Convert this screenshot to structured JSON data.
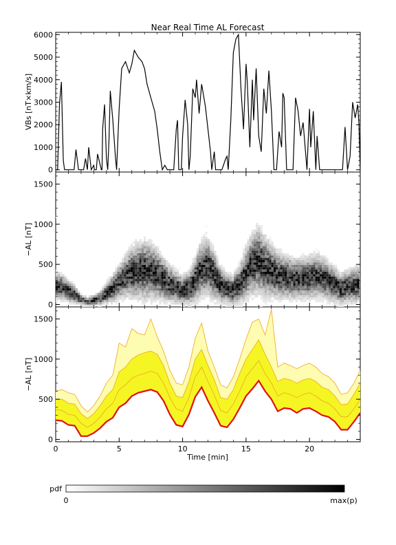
{
  "title": "Near Real Time AL Forecast",
  "colors": {
    "frame": "#000000",
    "yellow_fill": "#f5f524",
    "pale_fill": "#fdfcb0",
    "orange_line": "#f0a31c",
    "red_line": "#e01010",
    "vbs_line": "#000000"
  },
  "chart_data": [
    {
      "type": "line",
      "panel": "top",
      "ylabel": "VBs [nT×km/s]",
      "xlim": [
        0,
        24
      ],
      "ylim": [
        -100,
        6100
      ],
      "yticks": [
        0,
        1000,
        2000,
        3000,
        4000,
        5000,
        6000
      ],
      "yticklabels": [
        "0",
        "1000",
        "2000",
        "3000",
        "4000",
        "5000",
        "6000"
      ],
      "series": [
        {
          "x": [
            0,
            0.15,
            0.3,
            0.45,
            0.55,
            0.6,
            0.7,
            1.0,
            1.3,
            1.4,
            1.45,
            1.6,
            1.8,
            1.9,
            2.0,
            2.1,
            2.2,
            2.35,
            2.5,
            2.6,
            2.8,
            3.0,
            3.05,
            3.2,
            3.3,
            3.6,
            3.65,
            3.7,
            3.85,
            4.0,
            4.1,
            4.2,
            4.3,
            4.5,
            4.7,
            4.8,
            5.0,
            5.2,
            5.5,
            5.8,
            6.0,
            6.2,
            6.5,
            6.8,
            7.0,
            7.2,
            7.5,
            7.8,
            8.0,
            8.2,
            8.4,
            8.6,
            8.8,
            8.9,
            9.0,
            9.1,
            9.3,
            9.5,
            9.6,
            9.7,
            9.9,
            10.0,
            10.2,
            10.4,
            10.5,
            10.6,
            10.8,
            11.0,
            11.1,
            11.3,
            11.5,
            11.8,
            12.0,
            12.2,
            12.3,
            12.5,
            12.6,
            12.8,
            12.9,
            13.0,
            13.1,
            13.4,
            13.5,
            13.6,
            13.8,
            14.0,
            14.2,
            14.4,
            14.6,
            14.8,
            15.0,
            15.1,
            15.3,
            15.5,
            15.6,
            15.8,
            16.0,
            16.2,
            16.4,
            16.6,
            16.8,
            17.0,
            17.2,
            17.4,
            17.6,
            17.8,
            17.9,
            18.0,
            18.2,
            18.5,
            18.7,
            18.9,
            19.1,
            19.3,
            19.5,
            19.8,
            20.0,
            20.1,
            20.3,
            20.5,
            20.6,
            20.8,
            21.0,
            21.3,
            21.5,
            21.7,
            21.9,
            22.1,
            22.3,
            22.6,
            22.8,
            23.0,
            23.2,
            23.4,
            23.6,
            23.8,
            23.9,
            24.0
          ],
          "y": [
            0,
            0,
            2900,
            3900,
            1500,
            400,
            0,
            0,
            0,
            0,
            0,
            900,
            0,
            0,
            0,
            0,
            0,
            500,
            0,
            1000,
            0,
            200,
            0,
            0,
            700,
            0,
            0,
            1800,
            2900,
            500,
            0,
            1300,
            3500,
            2200,
            600,
            0,
            2700,
            4500,
            4800,
            4300,
            4700,
            5300,
            5000,
            4800,
            4500,
            3800,
            3200,
            2600,
            1800,
            800,
            0,
            200,
            0,
            0,
            0,
            0,
            0,
            1800,
            2200,
            0,
            0,
            1500,
            3100,
            2000,
            0,
            600,
            3600,
            3200,
            4000,
            2500,
            3800,
            2800,
            1800,
            800,
            0,
            800,
            0,
            0,
            0,
            0,
            0,
            500,
            600,
            0,
            2200,
            5200,
            5800,
            6000,
            3600,
            1800,
            4700,
            3900,
            1000,
            4000,
            2200,
            4500,
            1500,
            800,
            3600,
            2500,
            4400,
            2600,
            0,
            0,
            1700,
            1000,
            3400,
            3200,
            0,
            0,
            0,
            3200,
            2600,
            1500,
            2100,
            0,
            2700,
            1000,
            2600,
            0,
            1500,
            0,
            0,
            0,
            0,
            0,
            0,
            0,
            0,
            0,
            1900,
            0,
            600,
            3000,
            2300,
            2900,
            2000,
            0
          ]
        }
      ]
    },
    {
      "type": "heatmap",
      "panel": "middle",
      "ylabel": "−AL [nT]",
      "xlim": [
        0,
        24
      ],
      "ylim": [
        -30,
        1650
      ],
      "yticks": [
        0,
        500,
        1000,
        1500
      ],
      "yticklabels": [
        "0",
        "500",
        "1000",
        "1500"
      ],
      "grid": false,
      "x": [
        0,
        0.5,
        1,
        1.5,
        2,
        2.5,
        3,
        3.5,
        4,
        4.5,
        5,
        5.5,
        6,
        6.5,
        7,
        7.5,
        8,
        8.5,
        9,
        9.5,
        10,
        10.5,
        11,
        11.5,
        12,
        12.5,
        13,
        13.5,
        14,
        14.5,
        15,
        15.5,
        16,
        16.5,
        17,
        17.5,
        18,
        18.5,
        19,
        19.5,
        20,
        20.5,
        21,
        21.5,
        22,
        22.5,
        23,
        23.5,
        24
      ],
      "center": [
        240,
        220,
        170,
        130,
        60,
        40,
        50,
        80,
        140,
        200,
        280,
        350,
        400,
        420,
        430,
        420,
        380,
        320,
        260,
        220,
        180,
        200,
        300,
        450,
        480,
        380,
        250,
        200,
        180,
        250,
        380,
        500,
        560,
        480,
        420,
        380,
        350,
        340,
        320,
        330,
        340,
        360,
        350,
        300,
        260,
        200,
        220,
        240,
        260
      ],
      "spread": [
        160,
        150,
        130,
        110,
        60,
        50,
        60,
        80,
        120,
        160,
        200,
        240,
        300,
        330,
        350,
        330,
        300,
        260,
        220,
        190,
        170,
        190,
        260,
        330,
        340,
        300,
        220,
        180,
        170,
        220,
        300,
        360,
        400,
        360,
        320,
        280,
        260,
        250,
        240,
        240,
        250,
        260,
        250,
        230,
        210,
        180,
        190,
        200,
        210
      ]
    },
    {
      "type": "area",
      "panel": "bottom",
      "ylabel": "−AL [nT]",
      "xlabel": "Time [min]",
      "xlim": [
        0,
        24
      ],
      "ylim": [
        -30,
        1650
      ],
      "xticks": [
        0,
        5,
        10,
        15,
        20
      ],
      "xticklabels": [
        "0",
        "5",
        "10",
        "15",
        "20"
      ],
      "yticks": [
        0,
        500,
        1000,
        1500
      ],
      "yticklabels": [
        "0",
        "500",
        "1000",
        "1500"
      ],
      "x": [
        0,
        0.5,
        1,
        1.5,
        2,
        2.5,
        3,
        3.5,
        4,
        4.5,
        5,
        5.5,
        6,
        6.5,
        7,
        7.5,
        8,
        8.5,
        9,
        9.5,
        10,
        10.5,
        11,
        11.5,
        12,
        12.5,
        13,
        13.5,
        14,
        14.5,
        15,
        15.5,
        16,
        16.5,
        17,
        17.5,
        18,
        18.5,
        19,
        19.5,
        20,
        20.5,
        21,
        21.5,
        22,
        22.5,
        23,
        23.5,
        24
      ],
      "series": [
        {
          "name": "median",
          "values": [
            240,
            230,
            180,
            170,
            40,
            40,
            80,
            140,
            220,
            270,
            400,
            450,
            540,
            580,
            600,
            620,
            590,
            480,
            310,
            180,
            160,
            310,
            530,
            650,
            480,
            330,
            170,
            150,
            250,
            390,
            540,
            630,
            730,
            600,
            500,
            350,
            390,
            380,
            330,
            380,
            390,
            350,
            300,
            280,
            220,
            120,
            120,
            220,
            330
          ]
        },
        {
          "name": "q75",
          "values": [
            370,
            360,
            310,
            300,
            200,
            150,
            200,
            280,
            380,
            450,
            620,
            680,
            760,
            800,
            820,
            850,
            820,
            700,
            520,
            380,
            350,
            520,
            780,
            900,
            720,
            550,
            360,
            330,
            440,
            600,
            780,
            880,
            980,
            820,
            700,
            540,
            580,
            560,
            520,
            560,
            580,
            540,
            480,
            450,
            380,
            280,
            280,
            380,
            500
          ]
        },
        {
          "name": "q90",
          "values": [
            500,
            500,
            450,
            440,
            320,
            260,
            320,
            420,
            540,
            620,
            840,
            900,
            1000,
            1050,
            1080,
            1100,
            1060,
            920,
            700,
            540,
            520,
            720,
            1000,
            1120,
            920,
            740,
            520,
            500,
            620,
            820,
            1000,
            1120,
            1240,
            1060,
            900,
            720,
            760,
            740,
            700,
            740,
            760,
            720,
            650,
            620,
            540,
            430,
            440,
            560,
            700
          ]
        },
        {
          "name": "max",
          "values": [
            600,
            620,
            580,
            560,
            420,
            340,
            420,
            540,
            700,
            800,
            1200,
            1150,
            1380,
            1320,
            1300,
            1500,
            1280,
            1100,
            860,
            700,
            680,
            900,
            1260,
            1450,
            1100,
            900,
            680,
            640,
            780,
            1000,
            1250,
            1460,
            1500,
            1300,
            1620,
            900,
            950,
            920,
            880,
            920,
            950,
            900,
            820,
            780,
            700,
            560,
            580,
            700,
            860
          ]
        }
      ]
    }
  ],
  "colorbar": {
    "label": "pdf",
    "min_label": "0",
    "max_label": "max(p)"
  }
}
